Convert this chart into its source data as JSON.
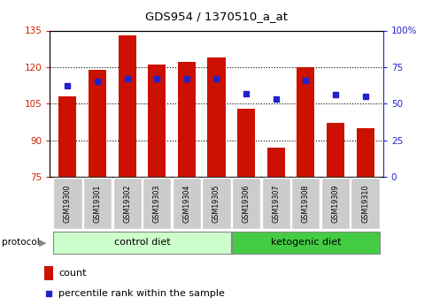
{
  "title": "GDS954 / 1370510_a_at",
  "samples": [
    "GSM19300",
    "GSM19301",
    "GSM19302",
    "GSM19303",
    "GSM19304",
    "GSM19305",
    "GSM19306",
    "GSM19307",
    "GSM19308",
    "GSM19309",
    "GSM19310"
  ],
  "count_values": [
    108.0,
    119.0,
    133.0,
    121.0,
    122.0,
    124.0,
    103.0,
    87.0,
    120.0,
    97.0,
    95.0
  ],
  "percentile_values": [
    62,
    65,
    67,
    67,
    67,
    67,
    57,
    53,
    66,
    56,
    55
  ],
  "left_ylim": [
    75,
    135
  ],
  "right_ylim": [
    0,
    100
  ],
  "left_yticks": [
    75,
    90,
    105,
    120,
    135
  ],
  "right_yticks": [
    0,
    25,
    50,
    75,
    100
  ],
  "right_yticklabels": [
    "0",
    "25",
    "50",
    "75",
    "100%"
  ],
  "bar_color": "#cc1100",
  "percentile_color": "#2222cc",
  "bar_width": 0.6,
  "control_diet_label": "control diet",
  "ketogenic_diet_label": "ketogenic diet",
  "protocol_label": "protocol",
  "legend_count_label": "count",
  "legend_percentile_label": "percentile rank within the sample",
  "label_bg": "#cccccc",
  "control_diet_bg": "#ccffcc",
  "ketogenic_diet_bg": "#44cc44"
}
